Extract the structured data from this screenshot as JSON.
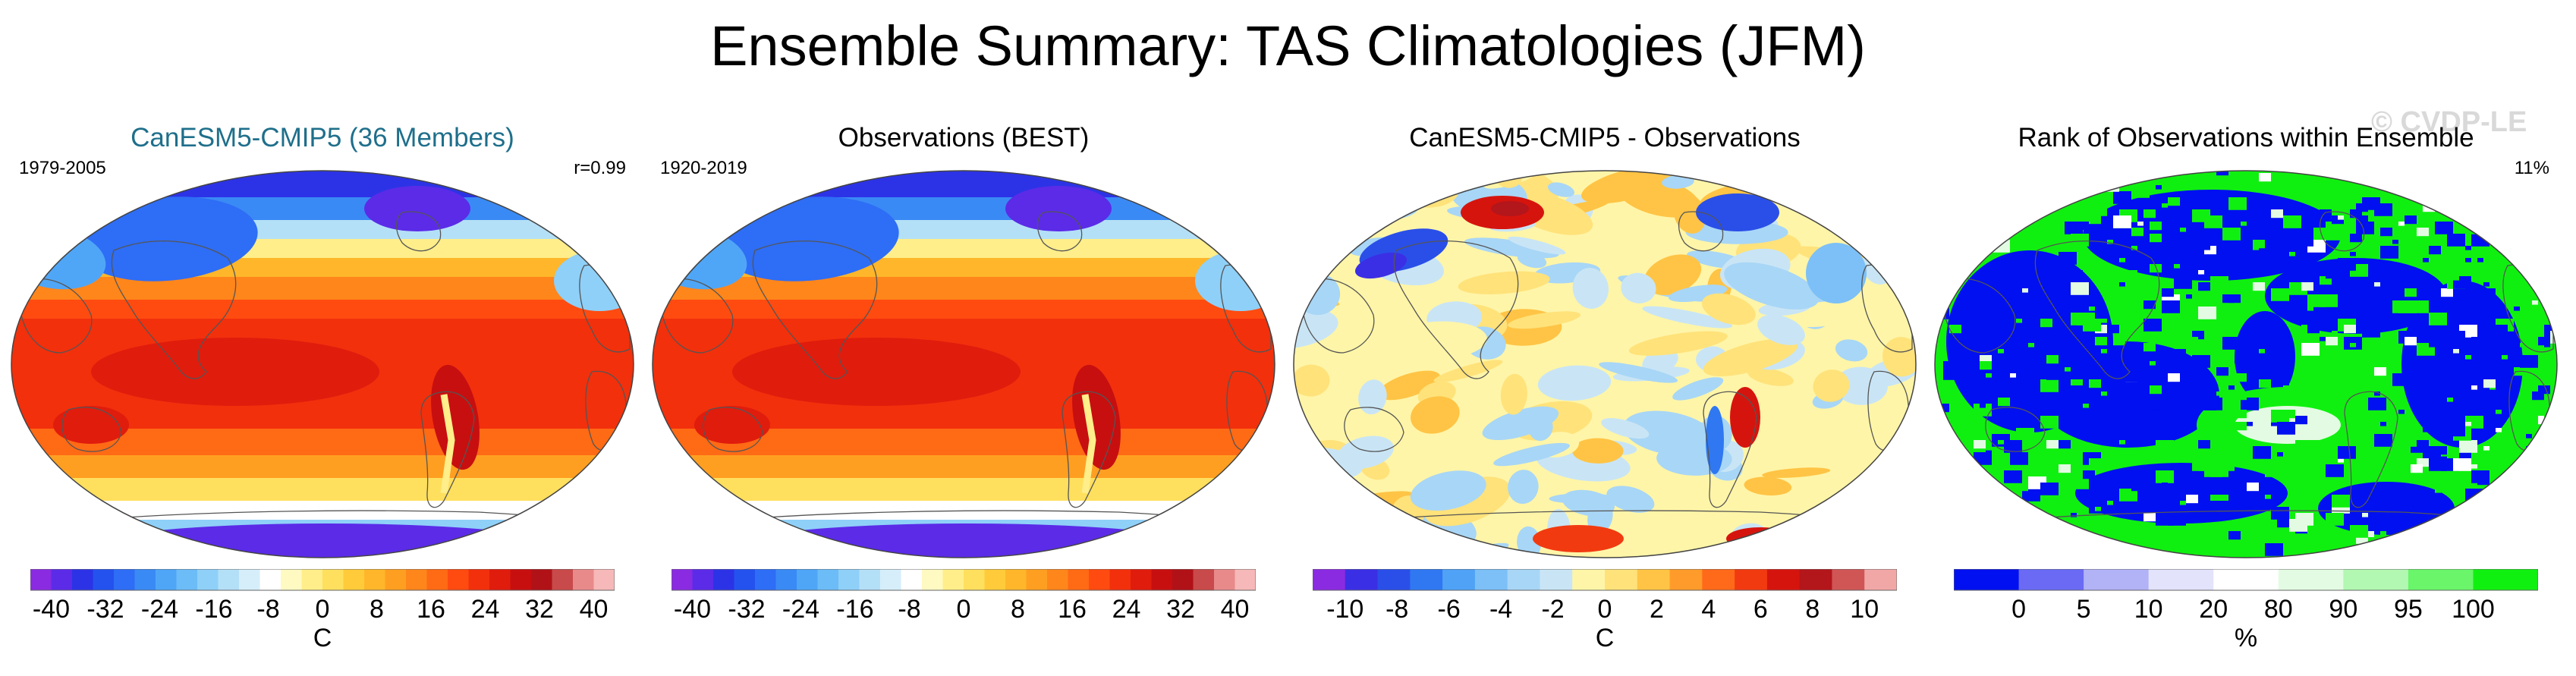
{
  "title": "Ensemble Summary: TAS Climatologies (JFM)",
  "watermark": "© CVDP-LE",
  "panels": [
    {
      "title": "CanESM5-CMIP5 (36 Members)",
      "title_color": "#1f6f8b",
      "left_note": "1979-2005",
      "right_note": "r=0.99",
      "field": "model",
      "colorbar": {
        "unit": "C",
        "colors": [
          "#8a2be2",
          "#5b2be8",
          "#2c33e6",
          "#2452ee",
          "#2e6df5",
          "#3a8af5",
          "#4fa6f7",
          "#6cbcf7",
          "#8fd0f8",
          "#b4e0f7",
          "#d6eefa",
          "#ffffff",
          "#fff9c2",
          "#ffee8a",
          "#ffdf5e",
          "#ffcb3a",
          "#ffb62a",
          "#ff9f21",
          "#ff861b",
          "#ff6a15",
          "#ff4b10",
          "#f2300c",
          "#e01c0d",
          "#c70f10",
          "#b01218",
          "#c84a4a",
          "#e88a8a",
          "#f6b8b8"
        ],
        "ticks": [
          "-40",
          "-32",
          "-24",
          "-16",
          "-8",
          "0",
          "8",
          "16",
          "24",
          "32",
          "40"
        ],
        "tick_positions": [
          0,
          2,
          4,
          6,
          8,
          10,
          12,
          14,
          16,
          18,
          20
        ],
        "nbins": 20
      }
    },
    {
      "title": "Observations (BEST)",
      "title_color": "#000000",
      "left_note": "1920-2019",
      "right_note": "",
      "field": "obs",
      "colorbar": {
        "unit": "",
        "colors": [
          "#8a2be2",
          "#5b2be8",
          "#2c33e6",
          "#2452ee",
          "#2e6df5",
          "#3a8af5",
          "#4fa6f7",
          "#6cbcf7",
          "#8fd0f8",
          "#b4e0f7",
          "#d6eefa",
          "#ffffff",
          "#fff9c2",
          "#ffee8a",
          "#ffdf5e",
          "#ffcb3a",
          "#ffb62a",
          "#ff9f21",
          "#ff861b",
          "#ff6a15",
          "#ff4b10",
          "#f2300c",
          "#e01c0d",
          "#c70f10",
          "#b01218",
          "#c84a4a",
          "#e88a8a",
          "#f6b8b8"
        ],
        "ticks": [
          "-40",
          "-32",
          "-24",
          "-16",
          "-8",
          "0",
          "8",
          "16",
          "24",
          "32",
          "40"
        ],
        "tick_positions": [
          0,
          2,
          4,
          6,
          8,
          10,
          12,
          14,
          16,
          18,
          20
        ],
        "nbins": 20
      }
    },
    {
      "title": "CanESM5-CMIP5 - Observations",
      "title_color": "#000000",
      "left_note": "",
      "right_note": "",
      "field": "diff",
      "colorbar": {
        "unit": "C",
        "colors": [
          "#8a2be2",
          "#3b2fe5",
          "#2a4fe8",
          "#2f78f2",
          "#4fa2f6",
          "#7cc0f7",
          "#a8d6f6",
          "#c9e5f5",
          "#fff5a8",
          "#ffe27a",
          "#ffc445",
          "#ff9b2a",
          "#ff6a1a",
          "#f23a10",
          "#d6140e",
          "#b3161b",
          "#d05656",
          "#f2a7a7"
        ],
        "ticks": [
          "-10",
          "-8",
          "-6",
          "-4",
          "-2",
          "0",
          "2",
          "4",
          "6",
          "8",
          "10"
        ],
        "tick_positions": [
          0,
          1,
          2,
          3,
          4,
          5,
          6,
          7,
          8,
          9,
          10
        ],
        "nbins": 10
      }
    },
    {
      "title": "Rank of Observations within Ensemble",
      "title_color": "#000000",
      "left_note": "",
      "right_note": "11%",
      "field": "rank",
      "colorbar": {
        "unit": "%",
        "colors": [
          "#0010f0",
          "#6a6af5",
          "#b2b2f7",
          "#e3e3fb",
          "#ffffff",
          "#e3fbe3",
          "#b2f7b2",
          "#6af56a",
          "#10f010"
        ],
        "ticks": [
          "0",
          "5",
          "10",
          "20",
          "80",
          "90",
          "95",
          "100"
        ],
        "tick_positions": [
          1,
          2,
          3,
          4,
          5,
          6,
          7,
          8
        ],
        "nbins": 9
      }
    }
  ]
}
